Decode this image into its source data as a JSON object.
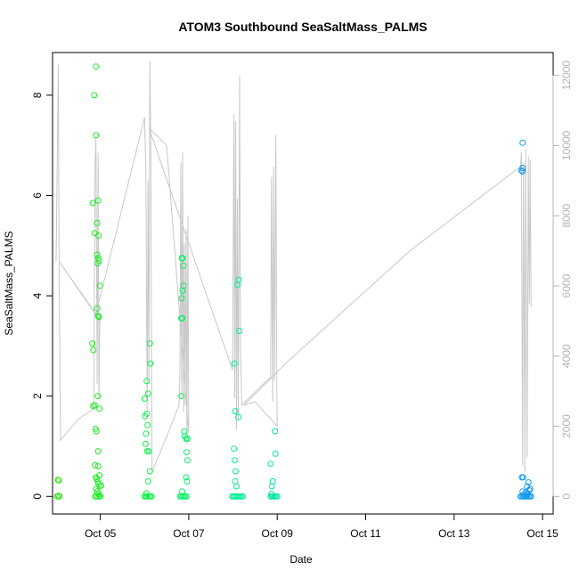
{
  "chart_data": {
    "type": "scatter",
    "title": "ATOM3 Southbound SeaSaltMass_PALMS",
    "xlabel": "Date",
    "ylabel": "SeaSaltMass_PALMS",
    "x_ticks": [
      "Oct 05",
      "Oct 07",
      "Oct 09",
      "Oct 11",
      "Oct 13",
      "Oct 15"
    ],
    "x_tick_days": [
      5,
      7,
      9,
      11,
      13,
      15
    ],
    "xlim_days": [
      3.92,
      15.24
    ],
    "y_ticks": [
      0,
      2,
      4,
      6,
      8
    ],
    "ylim": [
      -0.35,
      8.85
    ],
    "y2_ticks": [
      0,
      2000,
      4000,
      6000,
      8000,
      10000,
      12000
    ],
    "y2lim": [
      -500,
      12650
    ],
    "grid": false,
    "colors": {
      "early": "#22ee00",
      "mid": "#00ee99",
      "late": "#1199ee",
      "altitude_line": "#c8c8c8",
      "right_axis": "#b3b3b3"
    },
    "series": [
      {
        "values": [
          [
            4.02,
            0.0
          ],
          [
            4.05,
            0.01
          ],
          [
            4.08,
            0.0
          ],
          [
            4.04,
            0.33
          ],
          [
            4.06,
            0.32
          ],
          [
            4.83,
            5.85
          ],
          [
            4.86,
            8.0
          ],
          [
            4.9,
            8.57
          ],
          [
            4.9,
            7.2
          ],
          [
            4.87,
            5.25
          ],
          [
            4.95,
            5.9
          ],
          [
            4.93,
            5.45
          ],
          [
            4.96,
            5.2
          ],
          [
            4.93,
            4.82
          ],
          [
            4.95,
            4.75
          ],
          [
            4.94,
            4.65
          ],
          [
            4.97,
            4.7
          ],
          [
            4.99,
            4.2
          ],
          [
            4.93,
            3.75
          ],
          [
            4.95,
            3.6
          ],
          [
            4.97,
            3.58
          ],
          [
            4.82,
            3.05
          ],
          [
            4.84,
            2.92
          ],
          [
            4.94,
            2.0
          ],
          [
            4.98,
            1.75
          ],
          [
            4.84,
            1.8
          ],
          [
            4.87,
            1.82
          ],
          [
            4.89,
            1.35
          ],
          [
            4.91,
            1.3
          ],
          [
            4.95,
            0.9
          ],
          [
            4.88,
            0.62
          ],
          [
            4.95,
            0.6
          ],
          [
            4.98,
            0.42
          ],
          [
            4.9,
            0.38
          ],
          [
            4.92,
            0.35
          ],
          [
            4.94,
            0.3
          ],
          [
            4.96,
            0.25
          ],
          [
            4.99,
            0.2
          ],
          [
            4.9,
            0.15
          ],
          [
            4.93,
            0.1
          ],
          [
            4.96,
            0.05
          ],
          [
            4.98,
            0.02
          ],
          [
            4.88,
            0.0
          ],
          [
            4.91,
            0.0
          ],
          [
            4.95,
            0.0
          ],
          [
            5.0,
            0.0
          ],
          [
            5.02,
            0.22
          ],
          [
            6.0,
            1.95
          ],
          [
            6.05,
            2.3
          ],
          [
            6.08,
            2.05
          ],
          [
            6.12,
            3.05
          ],
          [
            6.13,
            2.65
          ],
          [
            6.01,
            1.6
          ],
          [
            6.05,
            1.65
          ],
          [
            6.07,
            1.42
          ],
          [
            6.03,
            1.25
          ],
          [
            6.02,
            1.05
          ],
          [
            6.06,
            0.9
          ],
          [
            6.1,
            0.9
          ],
          [
            6.12,
            0.5
          ],
          [
            6.08,
            0.3
          ],
          [
            6.0,
            0.0
          ],
          [
            6.03,
            0.0
          ],
          [
            6.06,
            0.0
          ],
          [
            6.1,
            0.0
          ],
          [
            6.13,
            0.0
          ],
          [
            6.16,
            0.0
          ],
          [
            6.04,
            0.06
          ]
        ]
      },
      {
        "values": [
          [
            6.84,
            4.75
          ],
          [
            6.86,
            4.75
          ],
          [
            6.88,
            4.6
          ],
          [
            6.88,
            4.2
          ],
          [
            6.86,
            4.1
          ],
          [
            6.84,
            3.95
          ],
          [
            6.83,
            3.55
          ],
          [
            6.85,
            3.55
          ],
          [
            6.83,
            2.0
          ],
          [
            6.9,
            1.3
          ],
          [
            6.91,
            1.2
          ],
          [
            6.94,
            1.15
          ],
          [
            6.97,
            1.15
          ],
          [
            6.95,
            0.88
          ],
          [
            6.97,
            0.72
          ],
          [
            6.94,
            0.38
          ],
          [
            6.96,
            0.3
          ],
          [
            6.85,
            0.1
          ],
          [
            6.8,
            0.0
          ],
          [
            6.83,
            0.0
          ],
          [
            6.86,
            0.0
          ],
          [
            6.89,
            0.0
          ],
          [
            6.92,
            0.0
          ],
          [
            6.95,
            0.0
          ],
          [
            8.03,
            2.65
          ],
          [
            8.05,
            1.7
          ],
          [
            8.13,
            4.32
          ],
          [
            8.1,
            4.22
          ],
          [
            8.14,
            3.3
          ],
          [
            8.12,
            1.58
          ],
          [
            8.02,
            0.95
          ],
          [
            8.04,
            0.72
          ],
          [
            8.06,
            0.5
          ],
          [
            8.05,
            0.3
          ],
          [
            8.08,
            0.2
          ],
          [
            7.98,
            0.0
          ],
          [
            8.01,
            0.0
          ],
          [
            8.04,
            0.0
          ],
          [
            8.07,
            0.0
          ],
          [
            8.1,
            0.0
          ],
          [
            8.13,
            0.0
          ],
          [
            8.16,
            0.0
          ],
          [
            8.19,
            0.0
          ],
          [
            8.22,
            0.0
          ],
          [
            8.85,
            0.65
          ],
          [
            8.88,
            0.2
          ],
          [
            8.9,
            0.3
          ],
          [
            8.96,
            0.85
          ],
          [
            8.95,
            1.3
          ],
          [
            8.87,
            0.05
          ],
          [
            8.85,
            0.0
          ],
          [
            8.88,
            0.0
          ],
          [
            8.91,
            0.0
          ],
          [
            8.94,
            0.0
          ],
          [
            8.97,
            0.0
          ],
          [
            9.0,
            0.0
          ]
        ]
      },
      {
        "values": [
          [
            14.55,
            7.05
          ],
          [
            14.52,
            6.5
          ],
          [
            14.55,
            6.55
          ],
          [
            14.55,
            6.48
          ],
          [
            14.53,
            0.38
          ],
          [
            14.56,
            0.38
          ],
          [
            14.68,
            0.28
          ],
          [
            14.65,
            0.2
          ],
          [
            14.72,
            0.15
          ],
          [
            14.55,
            0.1
          ],
          [
            14.62,
            0.08
          ],
          [
            14.7,
            0.12
          ],
          [
            14.5,
            0.0
          ],
          [
            14.53,
            0.0
          ],
          [
            14.56,
            0.0
          ],
          [
            14.59,
            0.0
          ],
          [
            14.62,
            0.0
          ],
          [
            14.65,
            0.0
          ],
          [
            14.68,
            0.0
          ],
          [
            14.71,
            0.0
          ],
          [
            14.74,
            0.0
          ],
          [
            14.58,
            0.04
          ],
          [
            14.66,
            0.05
          ]
        ]
      }
    ],
    "altitude_line": [
      [
        4.0,
        6700
      ],
      [
        4.05,
        12300
      ],
      [
        4.07,
        6500
      ],
      [
        4.1,
        1600
      ],
      [
        4.5,
        2200
      ],
      [
        4.85,
        2500
      ],
      [
        4.88,
        9500
      ],
      [
        4.9,
        10200
      ],
      [
        4.93,
        3200
      ],
      [
        4.95,
        9800
      ],
      [
        4.97,
        2800
      ],
      [
        4.99,
        5200
      ],
      [
        5.0,
        5000
      ],
      [
        4.5,
        5900
      ],
      [
        4.07,
        6700
      ],
      [
        4.9,
        5200
      ],
      [
        6.0,
        10800
      ],
      [
        6.03,
        9200
      ],
      [
        6.06,
        2400
      ],
      [
        6.08,
        9000
      ],
      [
        6.1,
        3200
      ],
      [
        6.12,
        12400
      ],
      [
        6.14,
        10200
      ],
      [
        6.17,
        700
      ],
      [
        6.5,
        1700
      ],
      [
        6.78,
        2600
      ],
      [
        6.8,
        3500
      ],
      [
        6.82,
        9500
      ],
      [
        6.84,
        2800
      ],
      [
        6.86,
        9800
      ],
      [
        6.88,
        2400
      ],
      [
        6.9,
        7200
      ],
      [
        6.92,
        2600
      ],
      [
        6.94,
        7600
      ],
      [
        6.96,
        1500
      ],
      [
        6.98,
        8000
      ],
      [
        7.0,
        1800
      ],
      [
        6.5,
        10000
      ],
      [
        6.1,
        10500
      ],
      [
        7.99,
        3600
      ],
      [
        8.02,
        10900
      ],
      [
        8.04,
        2800
      ],
      [
        8.06,
        10700
      ],
      [
        8.08,
        1900
      ],
      [
        8.1,
        8500
      ],
      [
        8.12,
        2200
      ],
      [
        8.15,
        12000
      ],
      [
        8.17,
        4200
      ],
      [
        8.2,
        2600
      ],
      [
        8.6,
        3100
      ],
      [
        8.85,
        3400
      ],
      [
        8.87,
        9100
      ],
      [
        8.9,
        2700
      ],
      [
        8.92,
        9400
      ],
      [
        8.94,
        3300
      ],
      [
        8.97,
        10300
      ],
      [
        8.99,
        3300
      ],
      [
        9.0,
        2000
      ],
      [
        8.5,
        2700
      ],
      [
        8.25,
        2600
      ],
      [
        9.2,
        3800
      ],
      [
        12.0,
        7000
      ],
      [
        14.5,
        9400
      ],
      [
        14.52,
        9800
      ],
      [
        14.55,
        900
      ],
      [
        14.57,
        9500
      ],
      [
        14.6,
        700
      ],
      [
        14.62,
        9900
      ],
      [
        14.65,
        1100
      ],
      [
        14.68,
        9700
      ],
      [
        14.7,
        5500
      ],
      [
        14.72,
        9600
      ],
      [
        14.74,
        5400
      ]
    ]
  }
}
